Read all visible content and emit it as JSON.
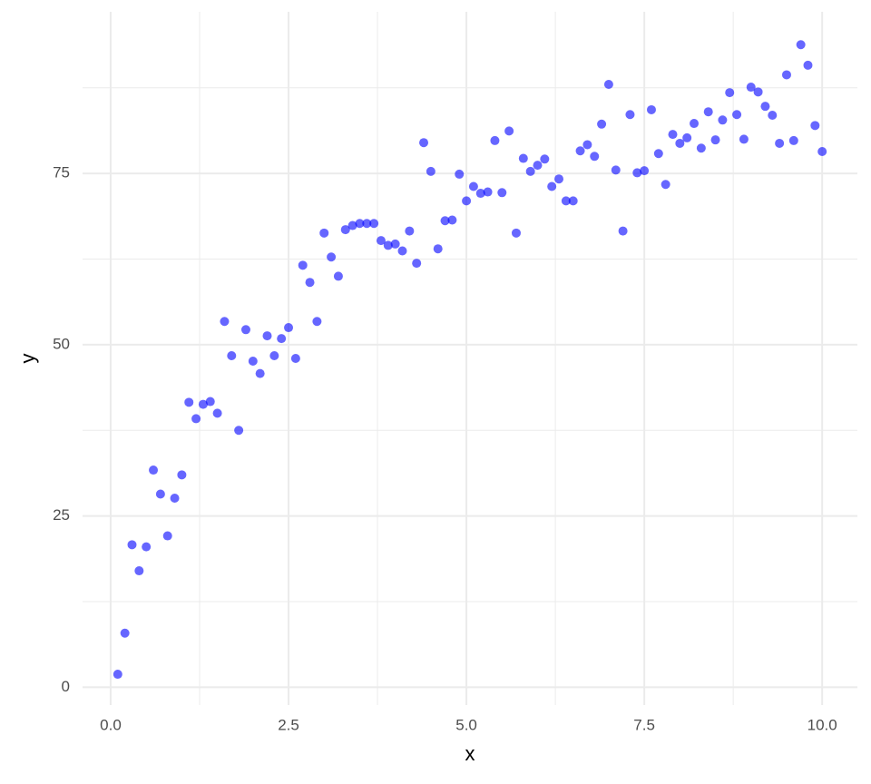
{
  "chart_data": {
    "type": "scatter",
    "x_label": "x",
    "y_label": "y",
    "x": [
      0.1,
      0.2,
      0.3,
      0.4,
      0.5,
      0.6,
      0.7,
      0.8,
      0.9,
      1.0,
      1.1,
      1.2,
      1.3,
      1.4,
      1.5,
      1.6,
      1.7,
      1.8,
      1.9,
      2.0,
      2.1,
      2.2,
      2.3,
      2.4,
      2.5,
      2.6,
      2.7,
      2.8,
      2.9,
      3.0,
      3.1,
      3.2,
      3.3,
      3.4,
      3.5,
      3.6,
      3.7,
      3.8,
      3.9,
      4.0,
      4.1,
      4.2,
      4.3,
      4.4,
      4.5,
      4.6,
      4.7,
      4.8,
      4.9,
      5.0,
      5.1,
      5.2,
      5.3,
      5.4,
      5.5,
      5.6,
      5.7,
      5.8,
      5.9,
      6.0,
      6.1,
      6.2,
      6.3,
      6.4,
      6.5,
      6.6,
      6.7,
      6.8,
      6.9,
      7.0,
      7.1,
      7.2,
      7.3,
      7.4,
      7.5,
      7.6,
      7.7,
      7.8,
      7.9,
      8.0,
      8.1,
      8.2,
      8.3,
      8.4,
      8.5,
      8.6,
      8.7,
      8.8,
      8.9,
      9.0,
      9.1,
      9.2,
      9.3,
      9.4,
      9.5,
      9.6,
      9.7,
      9.8,
      9.9,
      10.0
    ],
    "values": [
      1.9,
      7.9,
      20.8,
      17.0,
      20.5,
      31.7,
      28.2,
      22.1,
      27.6,
      31.0,
      41.6,
      39.2,
      41.3,
      41.7,
      40.0,
      53.4,
      48.4,
      37.5,
      52.2,
      47.6,
      45.8,
      51.3,
      48.4,
      50.9,
      52.5,
      48.0,
      61.6,
      59.1,
      53.4,
      66.3,
      62.8,
      60.0,
      66.8,
      67.4,
      67.7,
      67.7,
      67.7,
      65.2,
      64.5,
      64.7,
      63.7,
      66.6,
      61.9,
      79.5,
      75.3,
      64.0,
      68.1,
      68.2,
      74.9,
      71.0,
      73.1,
      72.1,
      72.3,
      79.8,
      72.2,
      81.2,
      66.3,
      77.2,
      75.3,
      76.2,
      77.1,
      73.1,
      74.2,
      71.0,
      71.0,
      78.3,
      79.2,
      77.5,
      82.2,
      88.0,
      75.5,
      66.6,
      83.6,
      75.1,
      75.4,
      84.3,
      77.9,
      73.4,
      80.7,
      79.4,
      80.2,
      82.3,
      78.7,
      84.0,
      79.9,
      82.8,
      86.8,
      83.6,
      80.0,
      87.6,
      86.9,
      84.8,
      83.5,
      79.4,
      89.4,
      79.8,
      93.8,
      90.8,
      82.0,
      78.2
    ],
    "color": "#0000ff",
    "opacity": 0.6,
    "xlim": [
      -0.395,
      10.495
    ],
    "ylim": [
      -2.6,
      98.6
    ],
    "xticks": [
      {
        "value": 0,
        "label": "0.0"
      },
      2.5,
      {
        "value": 5,
        "label": "5.0"
      },
      7.5,
      {
        "value": 10,
        "label": "10.0"
      }
    ],
    "yticks": [
      0,
      25,
      50,
      75
    ],
    "xminor": [
      1.25,
      3.75,
      6.25,
      8.75
    ],
    "yminor": [
      12.5,
      37.5,
      62.5,
      87.5
    ],
    "grid": true
  }
}
